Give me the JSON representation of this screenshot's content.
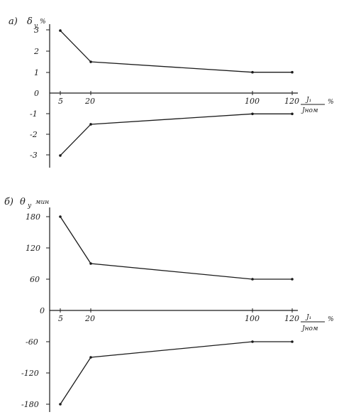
{
  "chart_data": [
    {
      "type": "line",
      "panel_label": "а)",
      "ylabel": "δ",
      "ylabel_sub": "у",
      "yunit": "%",
      "xlabel_num": "J₁",
      "xlabel_den": "Jном",
      "xunit": "%",
      "x_ticks": [
        "5",
        "20",
        "100",
        "120"
      ],
      "y_ticks": [
        "3",
        "2",
        "1",
        "0",
        "-1",
        "-2",
        "-3"
      ],
      "ylim": [
        -3.4,
        3.4
      ],
      "x": [
        5,
        20,
        100,
        120
      ],
      "series": [
        {
          "values": [
            3.0,
            1.5,
            1.0,
            1.0
          ]
        },
        {
          "values": [
            -3.0,
            -1.5,
            -1.0,
            -1.0
          ]
        }
      ]
    },
    {
      "type": "line",
      "panel_label": "б)",
      "ylabel": "θ",
      "ylabel_sub": "у",
      "yunit": "мин",
      "xlabel_num": "J₁",
      "xlabel_den": "Jном",
      "xunit": "%",
      "x_ticks": [
        "5",
        "20",
        "100",
        "120"
      ],
      "y_ticks": [
        "180",
        "120",
        "60",
        "0",
        "-60",
        "-120",
        "-180"
      ],
      "ylim": [
        -190,
        190
      ],
      "x": [
        5,
        20,
        100,
        120
      ],
      "series": [
        {
          "values": [
            180,
            90,
            60,
            60
          ]
        },
        {
          "values": [
            -180,
            -90,
            -60,
            -60
          ]
        }
      ]
    }
  ]
}
